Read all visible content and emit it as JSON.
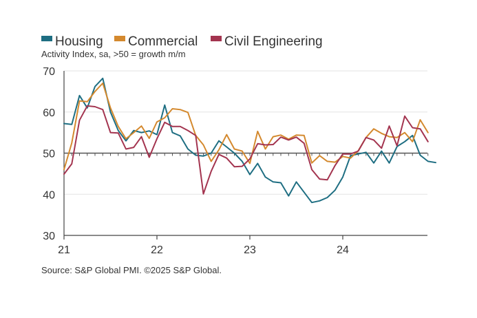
{
  "chart_data": {
    "type": "line",
    "subtitle": "Activity Index, sa, >50 = growth m/m",
    "source": "Source: S&P Global PMI. ©2025 S&P Global.",
    "ylim": [
      30,
      70
    ],
    "yticks": [
      "70",
      "60",
      "50",
      "40",
      "30"
    ],
    "reference_line": 50,
    "xtick_labels": [
      "21",
      "22",
      "23",
      "24"
    ],
    "x_start": "2021-01",
    "series": [
      {
        "name": "Housing",
        "color": "#1e6e82",
        "values": [
          57.2,
          57.0,
          64.0,
          61.0,
          66.2,
          68.2,
          60.0,
          55.5,
          53.0,
          55.5,
          55.0,
          55.4,
          54.5,
          61.7,
          55.0,
          54.2,
          51.0,
          49.5,
          49.3,
          50.0,
          53.0,
          51.5,
          50.0,
          48.0,
          44.8,
          47.5,
          44.2,
          43.0,
          42.8,
          39.6,
          43.0,
          40.5,
          38.0,
          38.4,
          39.2,
          41.0,
          44.2,
          49.4,
          49.8,
          50.2,
          47.6,
          50.5,
          47.6,
          51.6,
          52.8,
          54.3,
          49.5,
          48.0,
          47.7
        ]
      },
      {
        "name": "Commercial",
        "color": "#d4892e",
        "values": [
          46.0,
          52.5,
          62.7,
          62.5,
          65.0,
          67.0,
          61.0,
          56.5,
          53.5,
          55.0,
          56.6,
          53.6,
          57.6,
          58.6,
          60.8,
          60.6,
          59.9,
          54.3,
          52.0,
          48.0,
          50.8,
          54.5,
          51.0,
          50.5,
          47.5,
          55.3,
          51.0,
          54.0,
          54.4,
          53.4,
          54.4,
          54.3,
          47.6,
          49.4,
          48.0,
          47.8,
          49.2,
          48.8,
          50.6,
          53.8,
          55.9,
          54.8,
          54.0,
          53.8,
          55.0,
          52.8,
          58.1,
          55.0
        ]
      },
      {
        "name": "Civil Engineering",
        "color": "#a3344f",
        "values": [
          44.9,
          47.4,
          58.0,
          61.5,
          61.3,
          60.6,
          55.0,
          54.9,
          51.0,
          51.4,
          54.0,
          49.0,
          53.5,
          57.5,
          56.5,
          56.5,
          55.5,
          54.3,
          40.1,
          45.6,
          49.7,
          48.8,
          46.7,
          46.8,
          48.6,
          52.3,
          52.0,
          52.1,
          53.9,
          53.2,
          53.9,
          52.4,
          46.0,
          43.7,
          43.5,
          47.0,
          49.8,
          49.8,
          50.5,
          53.8,
          53.2,
          51.2,
          56.6,
          51.8,
          59.0,
          56.2,
          55.9,
          52.8
        ]
      }
    ]
  }
}
